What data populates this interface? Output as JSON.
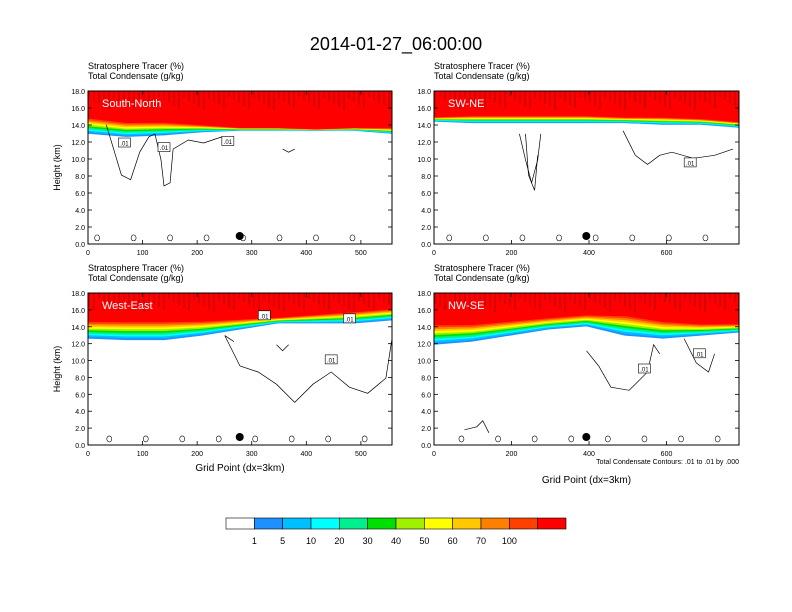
{
  "title": "2014-01-27_06:00:00",
  "footnote": "Total Condensate Contours: .01 to .01 by .000",
  "colorbar": {
    "labels": [
      "1",
      "5",
      "10",
      "20",
      "30",
      "40",
      "50",
      "60",
      "70",
      "100"
    ],
    "colors": [
      "#ffffff",
      "#1e90ff",
      "#00bfff",
      "#00ffff",
      "#00f090",
      "#00e000",
      "#a0f000",
      "#ffff00",
      "#ffc800",
      "#ff8000",
      "#ff4000",
      "#ff0000"
    ]
  },
  "chart_data": [
    {
      "type": "heatmap",
      "label": "South-North",
      "subtitle_1": "Stratosphere Tracer   (%)",
      "subtitle_2": "Total Condensate   (g/kg)",
      "ylabel": "Height (km)",
      "xlabel": "",
      "xlim": [
        0,
        557
      ],
      "ylim": [
        0,
        18
      ],
      "xticks": [
        "0",
        "100",
        "200",
        "300",
        "400",
        "500"
      ],
      "yticks": [
        "0.0",
        "2.0",
        "4.0",
        "6.0",
        "8.0",
        "10.0",
        "12.0",
        "14.0",
        "16.0",
        "18.0"
      ],
      "contour_labels": [
        ".01",
        ".01",
        ".01"
      ],
      "marker_x": 278
    },
    {
      "type": "heatmap",
      "label": "SW-NE",
      "subtitle_1": "Stratosphere Tracer   (%)",
      "subtitle_2": "Total Condensate   (g/kg)",
      "ylabel": "",
      "xlabel": "",
      "xlim": [
        0,
        787
      ],
      "ylim": [
        0,
        18
      ],
      "xticks": [
        "0",
        "200",
        "400",
        "600"
      ],
      "yticks": [
        "0.0",
        "2.0",
        "4.0",
        "6.0",
        "8.0",
        "10.0",
        "12.0",
        "14.0",
        "16.0",
        "18.0"
      ],
      "contour_labels": [
        ".01"
      ],
      "marker_x": 393
    },
    {
      "type": "heatmap",
      "label": "West-East",
      "subtitle_1": "Stratosphere Tracer   (%)",
      "subtitle_2": "Total Condensate   (g/kg)",
      "ylabel": "Height (km)",
      "xlabel": "Grid Point (dx=3km)",
      "xlim": [
        0,
        557
      ],
      "ylim": [
        0,
        18
      ],
      "xticks": [
        "0",
        "100",
        "200",
        "300",
        "400",
        "500"
      ],
      "yticks": [
        "0.0",
        "2.0",
        "4.0",
        "6.0",
        "8.0",
        "10.0",
        "12.0",
        "14.0",
        "16.0",
        "18.0"
      ],
      "contour_labels": [
        ".01",
        ".01",
        ".01"
      ],
      "marker_x": 278
    },
    {
      "type": "heatmap",
      "label": "NW-SE",
      "subtitle_1": "Stratosphere Tracer   (%)",
      "subtitle_2": "Total Condensate   (g/kg)",
      "ylabel": "",
      "xlabel": "Grid Point (dx=3km)",
      "xlim": [
        0,
        787
      ],
      "ylim": [
        0,
        18
      ],
      "xticks": [
        "0",
        "200",
        "400",
        "600"
      ],
      "yticks": [
        "0.0",
        "2.0",
        "4.0",
        "6.0",
        "8.0",
        "10.0",
        "12.0",
        "14.0",
        "16.0",
        "18.0"
      ],
      "contour_labels": [
        ".01",
        ".01"
      ],
      "marker_x": 393
    }
  ]
}
